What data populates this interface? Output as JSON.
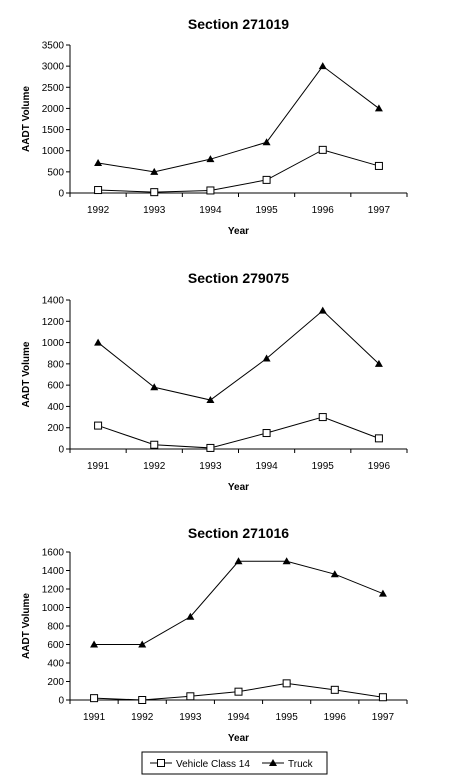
{
  "chart_data": [
    {
      "type": "line",
      "title": "Section 271019",
      "xlabel": "Year",
      "ylabel": "AADT Volume",
      "categories": [
        "1992",
        "1993",
        "1994",
        "1995",
        "1996",
        "1997"
      ],
      "ylim": [
        0,
        3500
      ],
      "yticks": [
        0,
        500,
        1000,
        1500,
        2000,
        2500,
        3000,
        3500
      ],
      "series": [
        {
          "name": "Vehicle Class 14",
          "values": [
            70,
            20,
            60,
            310,
            1020,
            640
          ]
        },
        {
          "name": "Truck",
          "values": [
            710,
            500,
            800,
            1200,
            3000,
            2000
          ]
        }
      ]
    },
    {
      "type": "line",
      "title": "Section 279075",
      "xlabel": "Year",
      "ylabel": "AADT Volume",
      "categories": [
        "1991",
        "1992",
        "1993",
        "1994",
        "1995",
        "1996"
      ],
      "ylim": [
        0,
        1400
      ],
      "yticks": [
        0,
        200,
        400,
        600,
        800,
        1000,
        1200,
        1400
      ],
      "series": [
        {
          "name": "Vehicle Class 14",
          "values": [
            220,
            40,
            10,
            150,
            300,
            100
          ]
        },
        {
          "name": "Truck",
          "values": [
            1000,
            580,
            460,
            850,
            1300,
            800
          ]
        }
      ]
    },
    {
      "type": "line",
      "title": "Section 271016",
      "xlabel": "Year",
      "ylabel": "AADT Volume",
      "categories": [
        "1991",
        "1992",
        "1993",
        "1994",
        "1995",
        "1996",
        "1997"
      ],
      "ylim": [
        0,
        1600
      ],
      "yticks": [
        0,
        200,
        400,
        600,
        800,
        1000,
        1200,
        1400,
        1600
      ],
      "series": [
        {
          "name": "Vehicle Class 14",
          "values": [
            20,
            0,
            40,
            90,
            180,
            110,
            30
          ]
        },
        {
          "name": "Truck",
          "values": [
            600,
            600,
            900,
            1500,
            1500,
            1360,
            1150
          ]
        }
      ]
    }
  ],
  "legend": {
    "items": [
      {
        "label": "Vehicle Class 14",
        "marker": "open-square-icon"
      },
      {
        "label": "Truck",
        "marker": "filled-triangle-icon"
      }
    ],
    "placement": "bottom"
  }
}
